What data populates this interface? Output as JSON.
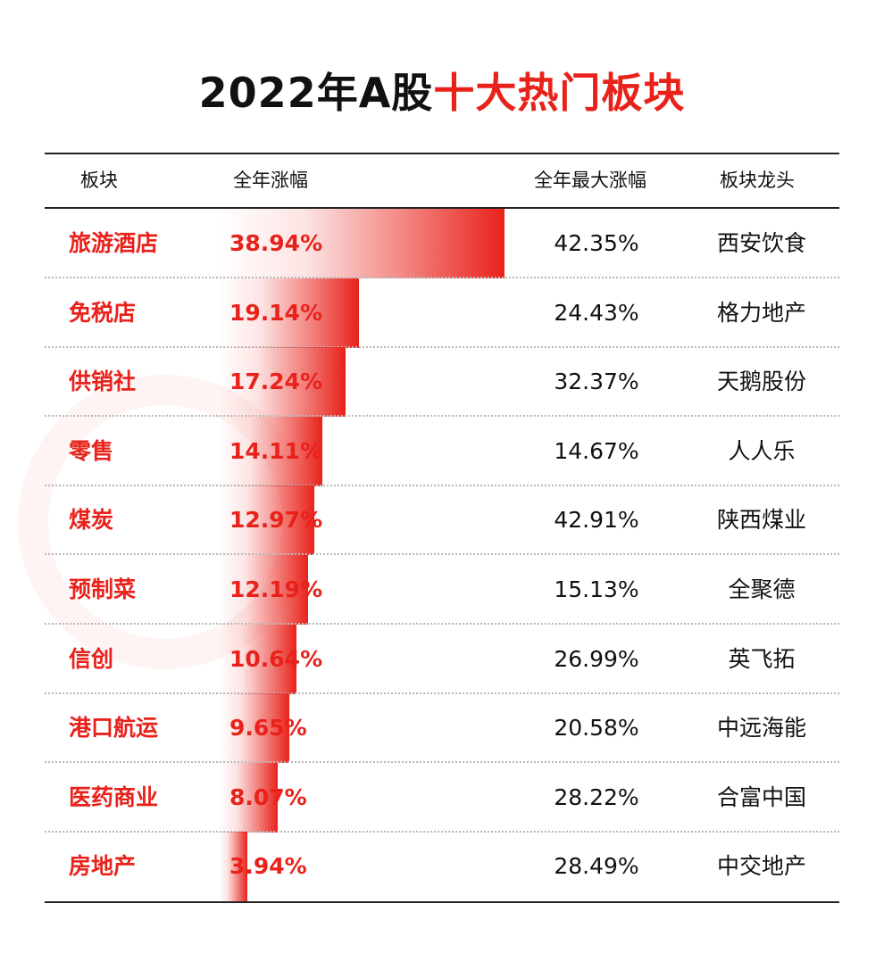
{
  "title": {
    "black": "2022年A股",
    "red": "十大热门板块"
  },
  "header": {
    "sector": "板块",
    "gain": "全年涨幅",
    "max_gain": "全年最大涨幅",
    "leader": "板块龙头"
  },
  "colors": {
    "accent": "#e8221b",
    "text": "#111111"
  },
  "chart_data": {
    "type": "bar",
    "orientation": "horizontal",
    "title": "2022年A股十大热门板块",
    "categories": [
      "旅游酒店",
      "免税店",
      "供销社",
      "零售",
      "煤炭",
      "预制菜",
      "信创",
      "港口航运",
      "医药商业",
      "房地产"
    ],
    "values": [
      38.94,
      19.14,
      17.24,
      14.11,
      12.97,
      12.19,
      10.64,
      9.65,
      8.07,
      3.94
    ],
    "value_labels": [
      "38.94%",
      "19.14%",
      "17.24%",
      "14.11%",
      "12.97%",
      "12.19%",
      "10.64%",
      "9.65%",
      "8.07%",
      "3.94%"
    ],
    "max_gain_labels": [
      "42.35%",
      "24.43%",
      "32.37%",
      "14.67%",
      "42.91%",
      "15.13%",
      "26.99%",
      "20.58%",
      "28.22%",
      "28.49%"
    ],
    "leaders": [
      "西安饮食",
      "格力地产",
      "天鹅股份",
      "人人乐",
      "陕西煤业",
      "全聚德",
      "英飞拓",
      "中远海能",
      "合富中国",
      "中交地产"
    ],
    "xlim": [
      0,
      38.94
    ]
  }
}
